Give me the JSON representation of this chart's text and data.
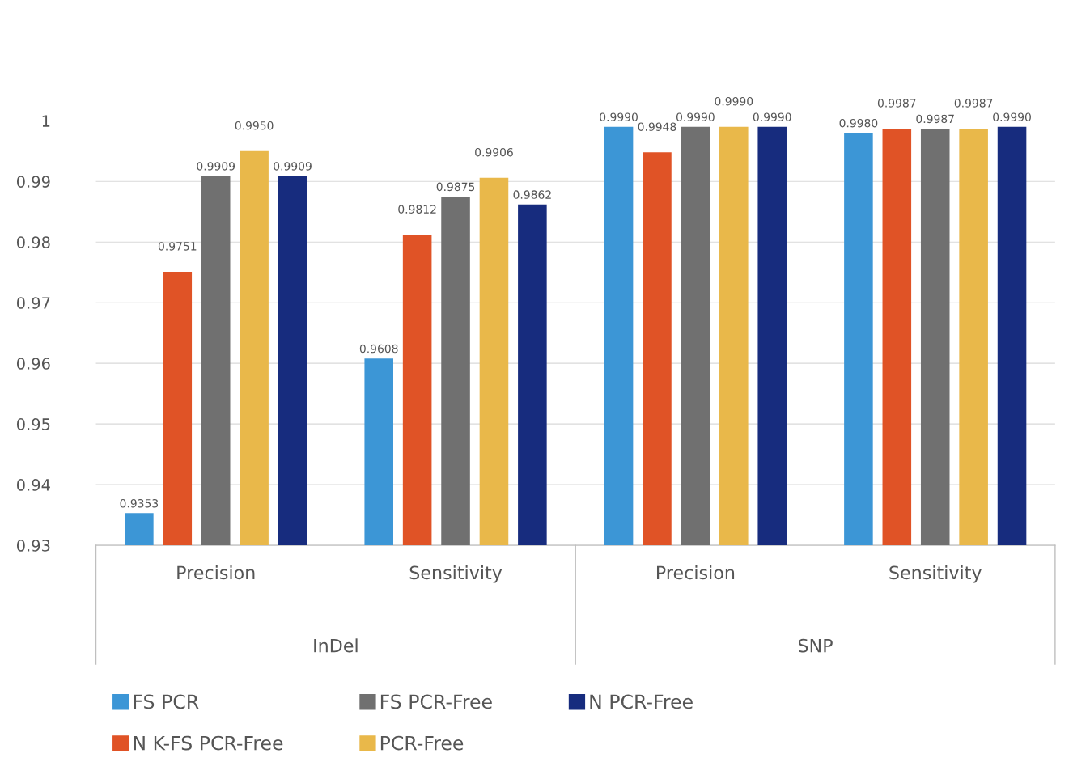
{
  "chart_data": {
    "type": "bar",
    "categories": [
      "Precision",
      "Sensitivity",
      "Precision",
      "Sensitivity"
    ],
    "annotations": [
      "InDel",
      "SNP"
    ],
    "series": [
      {
        "name": "FS PCR",
        "color": "#3c96d6",
        "values": [
          0.9353,
          0.9608,
          0.999,
          0.998
        ],
        "value_labels": [
          "0.9353",
          "0.9608",
          "0.9990",
          "0.9980"
        ]
      },
      {
        "name": "N K-FS PCR-Free",
        "color": "#e05326",
        "values": [
          0.9751,
          0.9812,
          0.9948,
          0.9987
        ],
        "value_labels": [
          "0.9751",
          "0.9812",
          "0.9948",
          "0.9987"
        ]
      },
      {
        "name": "FS PCR-Free",
        "color": "#707070",
        "values": [
          0.9909,
          0.9875,
          0.999,
          0.9987
        ],
        "value_labels": [
          "0.9909",
          "0.9875",
          "0.9990",
          "0.9987"
        ]
      },
      {
        "name": "PCR-Free",
        "color": "#e9b84a",
        "values": [
          0.995,
          0.9906,
          0.999,
          0.9987
        ],
        "value_labels": [
          "0.9950",
          "0.9906",
          "0.9990",
          "0.9987"
        ]
      },
      {
        "name": "N PCR-Free",
        "color": "#172c7e",
        "values": [
          0.9909,
          0.9862,
          0.999,
          0.999
        ],
        "value_labels": [
          "0.9909",
          "0.9862",
          "0.9990",
          "0.9990"
        ]
      }
    ],
    "ylim": [
      0.93,
      1
    ],
    "yticks": [
      0.93,
      0.94,
      0.95,
      0.96,
      0.97,
      0.98,
      0.99,
      1
    ],
    "grid": "y",
    "legend": "bottom"
  }
}
